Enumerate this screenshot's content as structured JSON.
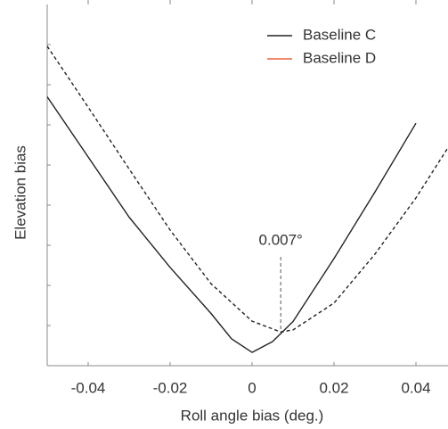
{
  "chart_data": {
    "type": "line",
    "x_label": "Roll angle bias (deg.)",
    "y_label": "Elevation bias",
    "xlim": [
      -0.05,
      0.05
    ],
    "xticks": [
      -0.04,
      -0.02,
      0,
      0.02,
      0.04
    ],
    "ylim": [
      0,
      9
    ],
    "yticks": [
      1,
      2,
      3,
      4,
      5,
      6,
      7,
      8
    ],
    "legend": "upper right",
    "series": [
      {
        "name": "Baseline C",
        "color": "#222222",
        "dash": false,
        "x": [
          -0.05,
          -0.04,
          -0.03,
          -0.02,
          -0.01,
          -0.005,
          0,
          0.005,
          0.01,
          0.02,
          0.03,
          0.04
        ],
        "values": [
          6.7,
          5.2,
          3.7,
          2.45,
          1.3,
          0.67,
          0.33,
          0.6,
          1.1,
          2.67,
          4.33,
          6.04
        ]
      },
      {
        "name": "Baseline D",
        "color": "#222222",
        "legend_color": "#e8603c",
        "dash": true,
        "x": [
          -0.05,
          -0.04,
          -0.03,
          -0.02,
          -0.01,
          0,
          0.007,
          0.01,
          0.02,
          0.03,
          0.04,
          0.05
        ],
        "values": [
          7.96,
          6.44,
          4.9,
          3.38,
          2.04,
          1.11,
          0.84,
          0.89,
          1.56,
          2.78,
          4.18,
          5.78
        ]
      }
    ],
    "annotations": [
      {
        "text": "0.007°",
        "x": 0.007,
        "y": 0.84
      }
    ]
  }
}
